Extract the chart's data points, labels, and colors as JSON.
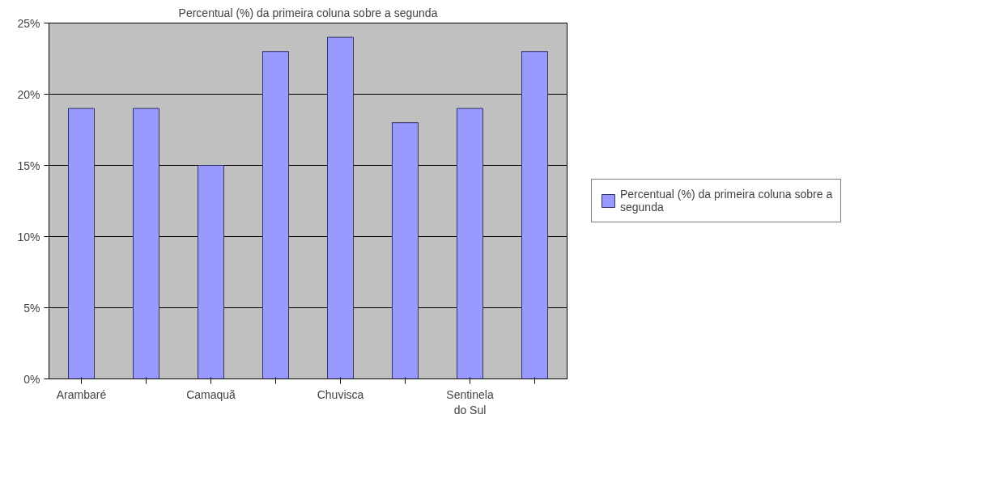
{
  "chart_data": {
    "type": "bar",
    "title": "Percentual (%) da primeira coluna sobre a segunda",
    "categories": [
      "Arambaré",
      null,
      "Camaquã",
      null,
      "Chuvisca",
      null,
      "Sentinela do Sul",
      null
    ],
    "series": [
      {
        "name": "Percentual (%) da primeira coluna sobre a segunda",
        "color": "#9999ff",
        "values": [
          19,
          19,
          15,
          23,
          24,
          18,
          19,
          23
        ]
      }
    ],
    "ylim": [
      0,
      25
    ],
    "yticks": [
      {
        "value": 0,
        "label": "0%"
      },
      {
        "value": 5,
        "label": "5%"
      },
      {
        "value": 10,
        "label": "10%"
      },
      {
        "value": 15,
        "label": "15%"
      },
      {
        "value": 20,
        "label": "20%"
      },
      {
        "value": 25,
        "label": "25%"
      }
    ],
    "grid": "y",
    "legend": "right"
  }
}
